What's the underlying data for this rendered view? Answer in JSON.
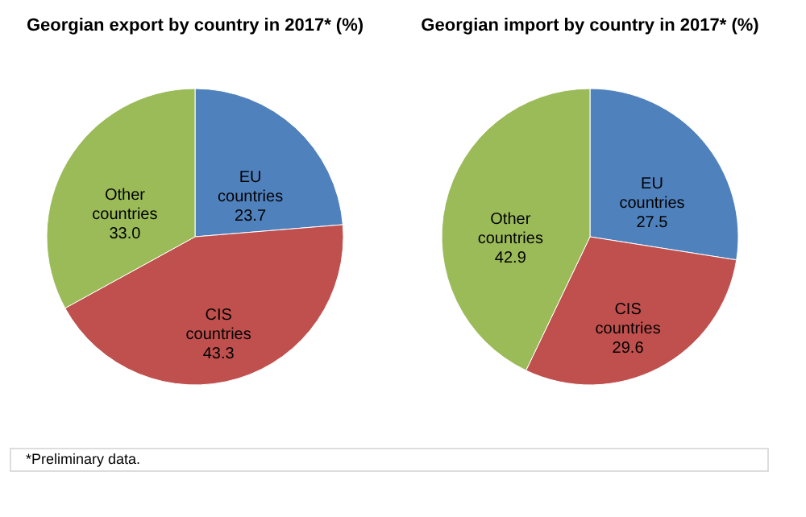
{
  "chart_data": [
    {
      "type": "pie",
      "title": "Georgian export by country in 2017* (%)",
      "categories": [
        "EU countries",
        "CIS countries",
        "Other countries"
      ],
      "values": [
        23.7,
        43.3,
        33.0
      ],
      "value_labels": [
        "23.7",
        "43.3",
        "33.0"
      ],
      "colors": [
        "#4f81bd",
        "#c0504d",
        "#9bbb59"
      ],
      "legend": false,
      "annotations": [
        "*Preliminary data."
      ]
    },
    {
      "type": "pie",
      "title": "Georgian import by country in 2017* (%)",
      "categories": [
        "EU countries",
        "CIS countries",
        "Other countries"
      ],
      "values": [
        27.5,
        29.6,
        42.9
      ],
      "value_labels": [
        "27.5",
        "29.6",
        "42.9"
      ],
      "colors": [
        "#4f81bd",
        "#c0504d",
        "#9bbb59"
      ],
      "legend": false
    }
  ]
}
